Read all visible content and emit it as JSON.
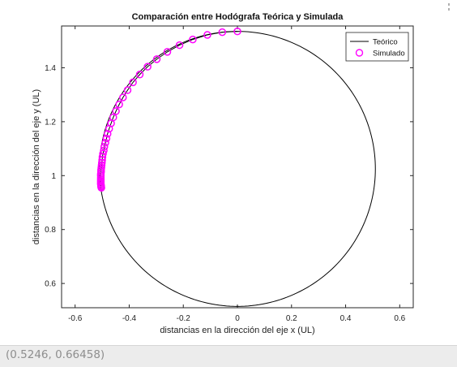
{
  "status_bar": {
    "coordinates": "(0.5246, 0.66458)"
  },
  "chart_data": {
    "type": "scatter",
    "title": "Comparación entre Hodógrafa Teórica y Simulada",
    "xlabel": "distancias en la dirección del eje x (UL)",
    "ylabel": "distancias en la dirección del eje y (UL)",
    "xlim": [
      -0.65,
      0.65
    ],
    "ylim": [
      0.51,
      1.555
    ],
    "x_ticks": [
      -0.6,
      -0.4,
      -0.2,
      0,
      0.2,
      0.4,
      0.6
    ],
    "x_tick_labels": [
      "-0.6",
      "-0.4",
      "-0.2",
      "0",
      "0.2",
      "0.4",
      "0.6"
    ],
    "y_ticks": [
      0.6,
      0.8,
      1.0,
      1.2,
      1.4
    ],
    "y_tick_labels": [
      "0.6",
      "0.8",
      "1",
      "1.2",
      "1.4"
    ],
    "grid": false,
    "legend_position": "top-right",
    "series": [
      {
        "name": "Teórico",
        "kind": "line",
        "color": "#000000",
        "circle": {
          "center_x": 0,
          "center_y": 1.025,
          "radius": 0.51,
          "points": 240
        }
      },
      {
        "name": "Simulado",
        "kind": "marker",
        "marker": "circle",
        "color": "#ff00ff",
        "x": [
          0,
          -0.056,
          -0.111,
          -0.165,
          -0.214,
          -0.259,
          -0.298,
          -0.332,
          -0.361,
          -0.386,
          -0.406,
          -0.423,
          -0.437,
          -0.449,
          -0.459,
          -0.467,
          -0.474,
          -0.48,
          -0.484,
          -0.488,
          -0.492,
          -0.494,
          -0.497,
          -0.499,
          -0.5,
          -0.501,
          -0.502,
          -0.503,
          -0.504,
          -0.504,
          -0.505,
          -0.505,
          -0.505,
          -0.505,
          -0.505,
          -0.505,
          -0.505,
          -0.504,
          -0.504,
          -0.503
        ],
        "y": [
          1.535,
          1.532,
          1.522,
          1.505,
          1.484,
          1.459,
          1.432,
          1.404,
          1.375,
          1.346,
          1.317,
          1.29,
          1.264,
          1.239,
          1.216,
          1.194,
          1.174,
          1.155,
          1.138,
          1.122,
          1.107,
          1.093,
          1.081,
          1.069,
          1.058,
          1.048,
          1.039,
          1.03,
          1.022,
          1.014,
          1.006,
          0.999,
          0.992,
          0.985,
          0.979,
          0.973,
          0.968,
          0.963,
          0.959,
          0.955
        ]
      }
    ]
  }
}
